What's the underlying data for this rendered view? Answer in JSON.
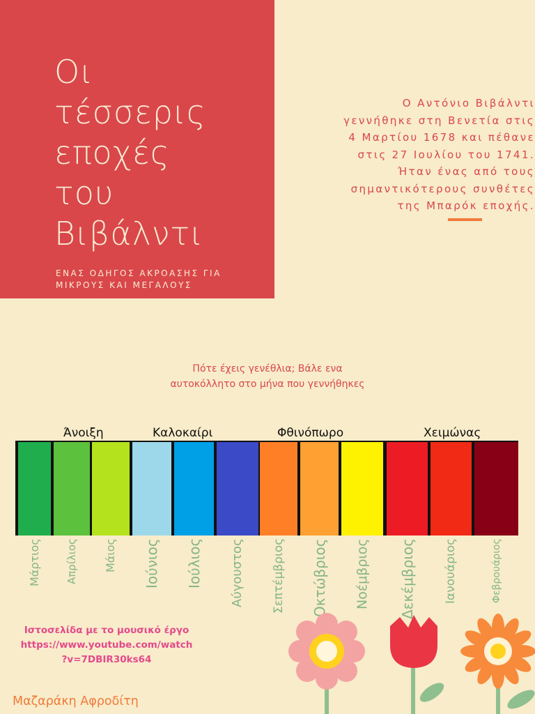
{
  "header": {
    "title_lines": [
      "Οι",
      "τέσσερις",
      "εποχές",
      "του",
      "Βιβάλντι"
    ],
    "subtitle_lines": [
      "ΕΝΑΣ ΟΔΗΓΟΣ ΑΚΡΟΑΣΗΣ ΓΙΑ",
      "ΜΙΚΡΟΥΣ ΚΑΙ ΜΕΓΑΛΟΥΣ"
    ]
  },
  "bio": {
    "lines": [
      "Ο Αντόνιο Βιβάλντι",
      "γεννήθηκε στη Βενετία στις",
      "4 Μαρτίου 1678 και πέθανε",
      "στις 27 Ιουλίου του 1741.",
      "Ήταν ένας από τους",
      "σημαντικότερους συνθέτες",
      "της Μπαρόκ εποχής."
    ]
  },
  "prompt": {
    "lines": [
      "Πότε έχεις γενέθλια; Βάλε ενα",
      "αυτοκόλλητο στο μήνα που γεννήθηκες"
    ]
  },
  "seasons": [
    "Άνοιξη",
    "Καλοκαίρι",
    "Φθινόπωρο",
    "Χειμώνας"
  ],
  "months": [
    {
      "name": "Μάρτιος",
      "color": "#1fad4e"
    },
    {
      "name": "Απρίλιος",
      "color": "#5cc23d"
    },
    {
      "name": "Μάιος",
      "color": "#b4e31d"
    },
    {
      "name": "Ιούνιος",
      "color": "#9dd8ea"
    },
    {
      "name": "Ιούλιος",
      "color": "#00a0e6"
    },
    {
      "name": "Αύγουστος",
      "color": "#3b4ac7"
    },
    {
      "name": "Σεπτέμβριος",
      "color": "#ff7f27"
    },
    {
      "name": "Οκτώβριος",
      "color": "#ffa033"
    },
    {
      "name": "Νοέμβριος",
      "color": "#fff200"
    },
    {
      "name": "Δεκέμβριος",
      "color": "#ed1c24"
    },
    {
      "name": "Ιανουάριος",
      "color": "#f12a16"
    },
    {
      "name": "Φεβρουάριος",
      "color": "#880015"
    }
  ],
  "link": {
    "label": "Ιστοσελίδα με το μουσικό έργο",
    "url_line_1": "https://www.youtube.com/watch",
    "url_line_2": "?v=7DBIR30ks64"
  },
  "author": "Μαζαράκη Αφροδίτη",
  "colors": {
    "background": "#f8ecca",
    "accent_red": "#d9474b",
    "title_text": "#f9edd3",
    "month_text": "#86b586",
    "link_pink": "#e4498c",
    "author_orange": "#f07a3a"
  }
}
